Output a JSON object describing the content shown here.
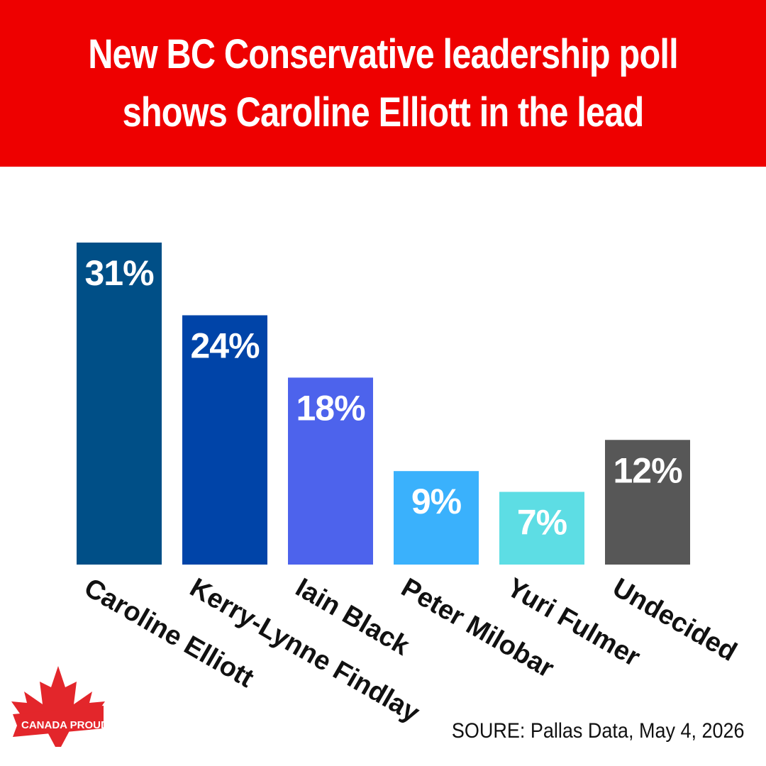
{
  "headline": {
    "line1": "New BC Conservative leadership poll",
    "line2": "shows Caroline Elliott in the lead"
  },
  "chart_data": {
    "type": "bar",
    "categories": [
      "Caroline Elliott",
      "Kerry-Lynne Findlay",
      "Iain Black",
      "Peter Milobar",
      "Yuri Fulmer",
      "Undecided"
    ],
    "values": [
      31,
      24,
      18,
      9,
      7,
      12
    ],
    "value_labels": [
      "31%",
      "24%",
      "18%",
      "9%",
      "7%",
      "12%"
    ],
    "colors": [
      "#004f87",
      "#0044a8",
      "#4d63ec",
      "#3ab1fc",
      "#5ddde4",
      "#575757"
    ],
    "ylim": [
      0,
      31
    ],
    "grid": false
  },
  "source": "SOURE: Pallas Data, May 4, 2026",
  "logo": {
    "text": "CANADA PROUD",
    "icon": "maple-leaf-icon",
    "color": "#e3262b"
  },
  "colors": {
    "banner": "#ee0000"
  }
}
